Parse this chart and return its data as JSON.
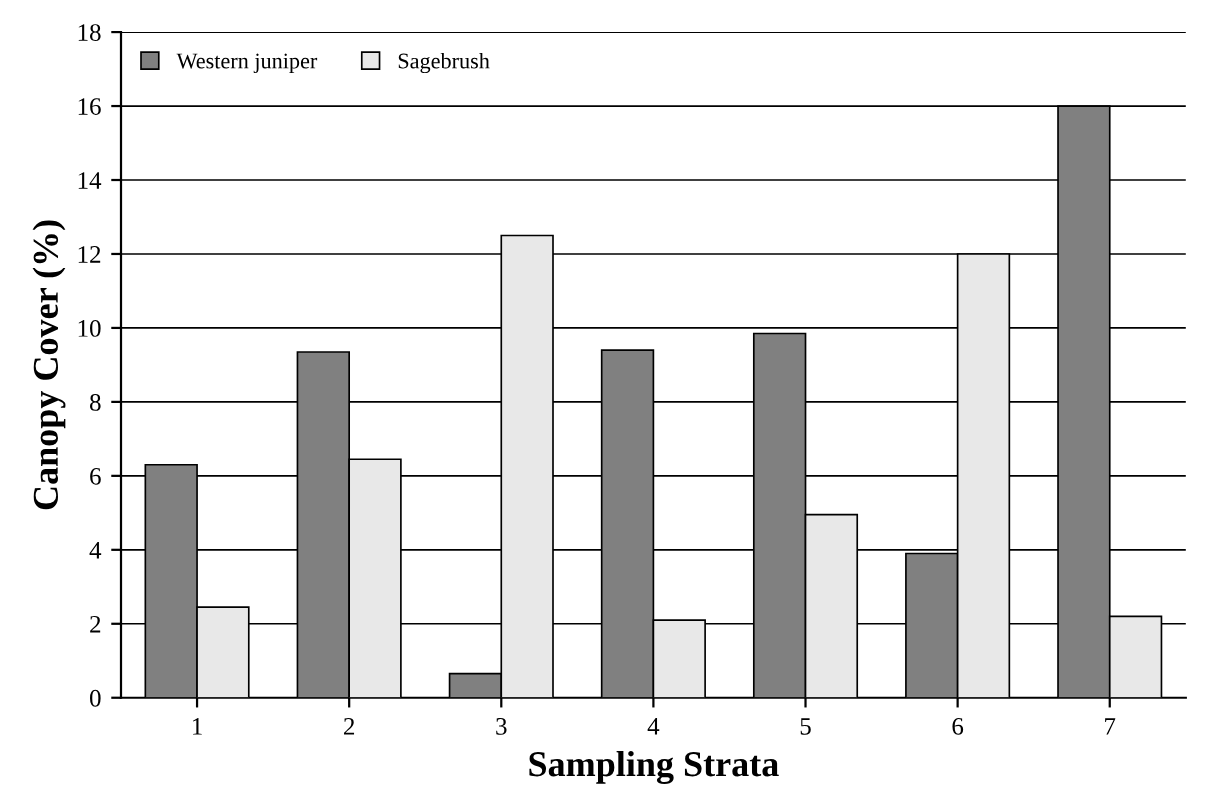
{
  "chart_data": {
    "type": "bar",
    "xlabel": "Sampling Strata",
    "ylabel": "Canopy Cover (%)",
    "categories": [
      "1",
      "2",
      "3",
      "4",
      "5",
      "6",
      "7"
    ],
    "series": [
      {
        "name": "Western juniper",
        "color": "#808080",
        "values": [
          6.3,
          9.35,
          0.65,
          9.4,
          9.85,
          3.9,
          16.0
        ]
      },
      {
        "name": "Sagebrush",
        "color": "#e8e8e8",
        "values": [
          2.45,
          6.45,
          12.5,
          2.1,
          4.95,
          12.0,
          2.2
        ]
      }
    ],
    "ylim": [
      0,
      18
    ],
    "yticks": [
      0,
      2,
      4,
      6,
      8,
      10,
      12,
      14,
      16,
      18
    ],
    "grid": "y",
    "legend": "top left"
  }
}
